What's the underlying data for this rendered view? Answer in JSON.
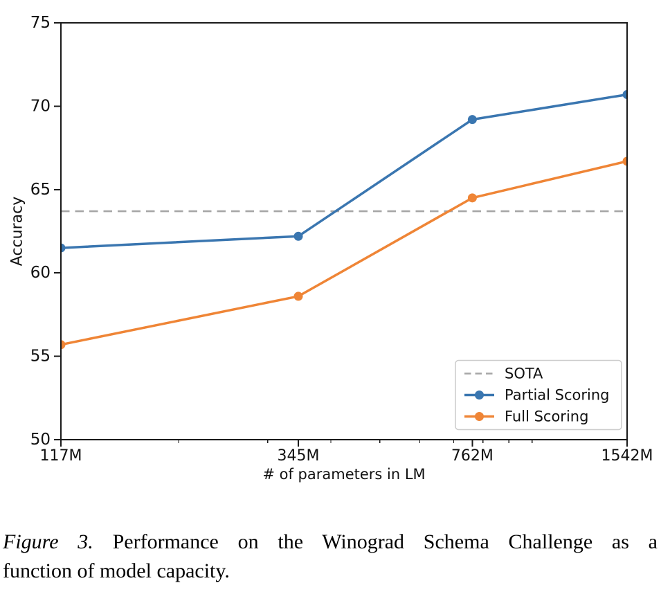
{
  "chart_data": {
    "type": "line",
    "title": "",
    "xlabel": "# of parameters in LM",
    "ylabel": "Accuracy",
    "x_scale": "log",
    "x_tick_labels": [
      "117M",
      "345M",
      "762M",
      "1542M"
    ],
    "x_values_millions": [
      117,
      345,
      762,
      1542
    ],
    "x_minor_ticks_millions": [
      200,
      300,
      400,
      500,
      600,
      700,
      800,
      900,
      1000
    ],
    "ylim": [
      50,
      75
    ],
    "yticks": [
      50,
      55,
      60,
      65,
      70,
      75
    ],
    "grid": false,
    "series": [
      {
        "name": "Partial Scoring",
        "color": "#3a76b0",
        "marker": "circle",
        "values": [
          61.5,
          62.2,
          69.2,
          70.7
        ]
      },
      {
        "name": "Full Scoring",
        "color": "#ef8536",
        "marker": "circle",
        "values": [
          55.7,
          58.6,
          64.5,
          66.7
        ]
      }
    ],
    "reference_line": {
      "name": "SOTA",
      "value": 63.7,
      "color": "#a6a6a6",
      "style": "dashed"
    },
    "legend": {
      "position": "lower right",
      "order": [
        "SOTA",
        "Partial Scoring",
        "Full Scoring"
      ]
    },
    "colors": {
      "axis": "#1a1a1a",
      "text": "#111111",
      "legend_border": "#cccccc",
      "background": "#ffffff"
    }
  },
  "caption": {
    "label": "Figure 3.",
    "line1_rest": "Performance on the Winograd Schema Challenge as a",
    "line2": "function of model capacity.",
    "full_text": "Figure 3. Performance on the Winograd Schema Challenge as a function of model capacity."
  }
}
